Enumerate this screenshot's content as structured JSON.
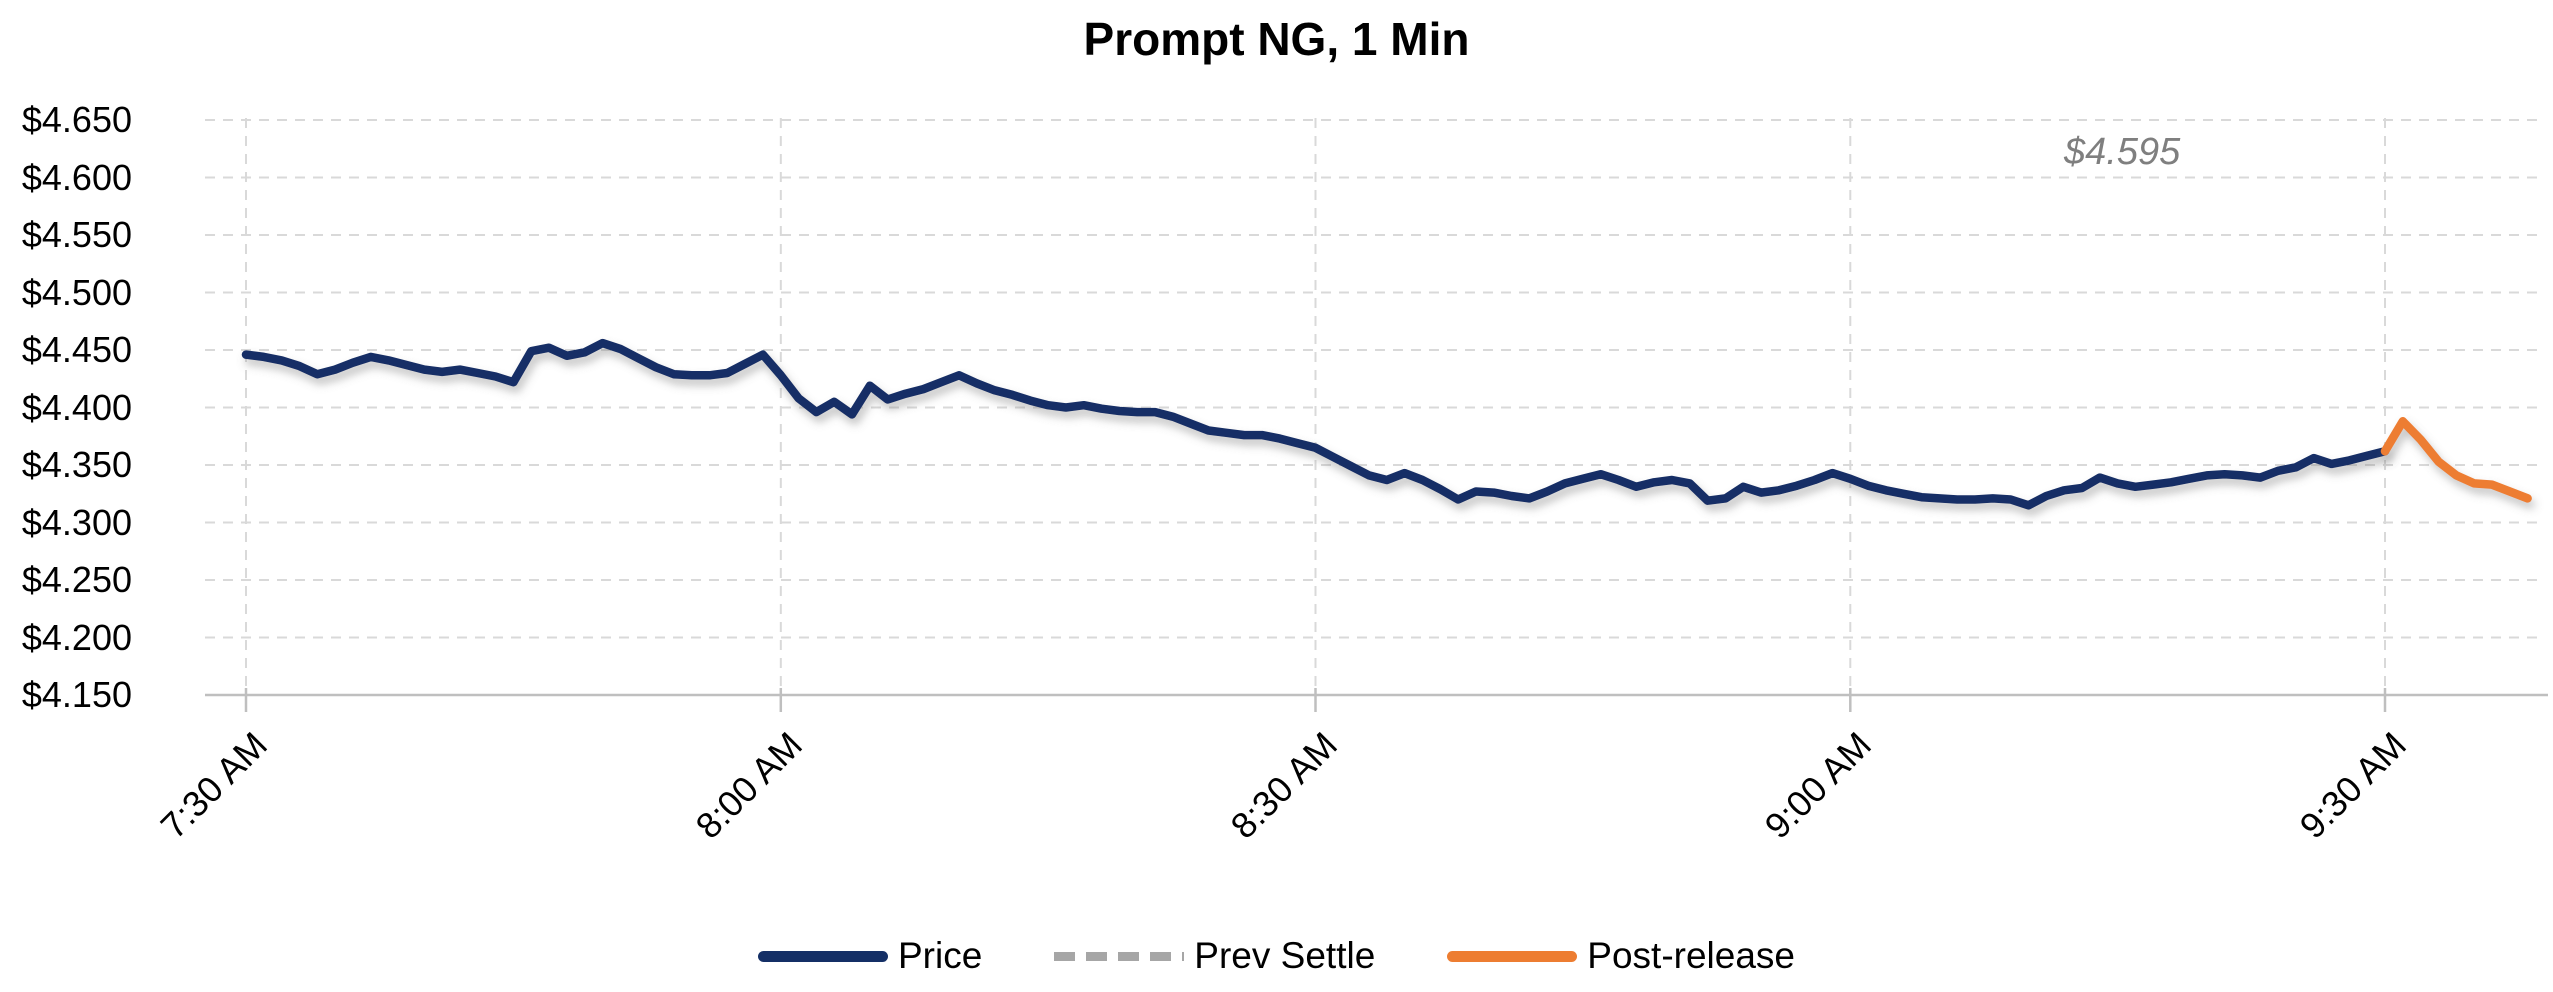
{
  "title": "Prompt NG, 1 Min",
  "legend": [
    {
      "label": "Price",
      "style": "solid",
      "color": "#142f66"
    },
    {
      "label": "Prev Settle",
      "style": "dashed",
      "color": "#a6a6a6"
    },
    {
      "label": "Post-release",
      "style": "solid",
      "color": "#ed7d31"
    }
  ],
  "chart_data": {
    "type": "line",
    "title": "Prompt NG, 1 Min",
    "xlabel": "",
    "ylabel": "",
    "grid": true,
    "legend_position": "bottom",
    "x_unit": "minutes after 7:30 AM, 1-minute bars",
    "x_axis": {
      "ticks": [
        {
          "min": 0,
          "label": "7:30 AM"
        },
        {
          "min": 30,
          "label": "8:00 AM"
        },
        {
          "min": 60,
          "label": "8:30 AM"
        },
        {
          "min": 90,
          "label": "9:00 AM"
        },
        {
          "min": 120,
          "label": "9:30 AM"
        }
      ]
    },
    "y_axis": {
      "min": 4.15,
      "max": 4.65,
      "ticks": [
        {
          "value": 4.15,
          "label": "$4.150"
        },
        {
          "value": 4.2,
          "label": "$4.200"
        },
        {
          "value": 4.25,
          "label": "$4.250"
        },
        {
          "value": 4.3,
          "label": "$4.300"
        },
        {
          "value": 4.35,
          "label": "$4.350"
        },
        {
          "value": 4.4,
          "label": "$4.400"
        },
        {
          "value": 4.45,
          "label": "$4.450"
        },
        {
          "value": 4.5,
          "label": "$4.500"
        },
        {
          "value": 4.55,
          "label": "$4.550"
        },
        {
          "value": 4.6,
          "label": "$4.600"
        },
        {
          "value": 4.65,
          "label": "$4.650"
        }
      ]
    },
    "prev_settle": {
      "value": 4.595,
      "label": "$4.595"
    },
    "series": [
      {
        "name": "Price",
        "color": "#142f66",
        "style": "solid",
        "points": [
          [
            0,
            4.446
          ],
          [
            1,
            4.444
          ],
          [
            2,
            4.441
          ],
          [
            3,
            4.436
          ],
          [
            4,
            4.429
          ],
          [
            5,
            4.433
          ],
          [
            6,
            4.439
          ],
          [
            7,
            4.444
          ],
          [
            8,
            4.441
          ],
          [
            9,
            4.437
          ],
          [
            10,
            4.433
          ],
          [
            11,
            4.431
          ],
          [
            12,
            4.433
          ],
          [
            13,
            4.43
          ],
          [
            14,
            4.427
          ],
          [
            15,
            4.422
          ],
          [
            16,
            4.449
          ],
          [
            17,
            4.452
          ],
          [
            18,
            4.445
          ],
          [
            19,
            4.448
          ],
          [
            20,
            4.456
          ],
          [
            21,
            4.451
          ],
          [
            22,
            4.443
          ],
          [
            23,
            4.435
          ],
          [
            24,
            4.429
          ],
          [
            25,
            4.428
          ],
          [
            26,
            4.428
          ],
          [
            27,
            4.43
          ],
          [
            28,
            4.438
          ],
          [
            29,
            4.446
          ],
          [
            30,
            4.428
          ],
          [
            31,
            4.408
          ],
          [
            32,
            4.396
          ],
          [
            33,
            4.405
          ],
          [
            34,
            4.394
          ],
          [
            35,
            4.419
          ],
          [
            36,
            4.407
          ],
          [
            37,
            4.412
          ],
          [
            38,
            4.416
          ],
          [
            39,
            4.422
          ],
          [
            40,
            4.428
          ],
          [
            41,
            4.421
          ],
          [
            42,
            4.415
          ],
          [
            43,
            4.411
          ],
          [
            44,
            4.406
          ],
          [
            45,
            4.402
          ],
          [
            46,
            4.4
          ],
          [
            47,
            4.402
          ],
          [
            48,
            4.399
          ],
          [
            49,
            4.397
          ],
          [
            50,
            4.396
          ],
          [
            51,
            4.396
          ],
          [
            52,
            4.392
          ],
          [
            53,
            4.386
          ],
          [
            54,
            4.38
          ],
          [
            55,
            4.378
          ],
          [
            56,
            4.376
          ],
          [
            57,
            4.376
          ],
          [
            58,
            4.373
          ],
          [
            59,
            4.369
          ],
          [
            60,
            4.365
          ],
          [
            61,
            4.357
          ],
          [
            62,
            4.349
          ],
          [
            63,
            4.341
          ],
          [
            64,
            4.337
          ],
          [
            65,
            4.343
          ],
          [
            66,
            4.337
          ],
          [
            67,
            4.329
          ],
          [
            68,
            4.32
          ],
          [
            69,
            4.327
          ],
          [
            70,
            4.326
          ],
          [
            71,
            4.323
          ],
          [
            72,
            4.321
          ],
          [
            73,
            4.327
          ],
          [
            74,
            4.334
          ],
          [
            75,
            4.338
          ],
          [
            76,
            4.342
          ],
          [
            77,
            4.337
          ],
          [
            78,
            4.331
          ],
          [
            79,
            4.335
          ],
          [
            80,
            4.337
          ],
          [
            81,
            4.334
          ],
          [
            82,
            4.319
          ],
          [
            83,
            4.321
          ],
          [
            84,
            4.331
          ],
          [
            85,
            4.326
          ],
          [
            86,
            4.328
          ],
          [
            87,
            4.332
          ],
          [
            88,
            4.337
          ],
          [
            89,
            4.343
          ],
          [
            90,
            4.338
          ],
          [
            91,
            4.332
          ],
          [
            92,
            4.328
          ],
          [
            93,
            4.325
          ],
          [
            94,
            4.322
          ],
          [
            95,
            4.321
          ],
          [
            96,
            4.32
          ],
          [
            97,
            4.32
          ],
          [
            98,
            4.321
          ],
          [
            99,
            4.32
          ],
          [
            100,
            4.315
          ],
          [
            101,
            4.323
          ],
          [
            102,
            4.328
          ],
          [
            103,
            4.33
          ],
          [
            104,
            4.339
          ],
          [
            105,
            4.334
          ],
          [
            106,
            4.331
          ],
          [
            107,
            4.333
          ],
          [
            108,
            4.335
          ],
          [
            109,
            4.338
          ],
          [
            110,
            4.341
          ],
          [
            111,
            4.342
          ],
          [
            112,
            4.341
          ],
          [
            113,
            4.339
          ],
          [
            114,
            4.345
          ],
          [
            115,
            4.348
          ],
          [
            116,
            4.356
          ],
          [
            117,
            4.351
          ],
          [
            118,
            4.354
          ],
          [
            119,
            4.358
          ],
          [
            120,
            4.362
          ]
        ]
      },
      {
        "name": "Prev Settle",
        "color": "#7f7f7f",
        "style": "dashed",
        "value": 4.595
      },
      {
        "name": "Post-release",
        "color": "#ed7d31",
        "style": "solid",
        "points": [
          [
            120,
            4.362
          ],
          [
            121,
            4.388
          ],
          [
            122,
            4.372
          ],
          [
            123,
            4.353
          ],
          [
            124,
            4.341
          ],
          [
            125,
            4.334
          ],
          [
            126,
            4.333
          ],
          [
            127,
            4.327
          ],
          [
            128,
            4.321
          ]
        ]
      }
    ]
  }
}
